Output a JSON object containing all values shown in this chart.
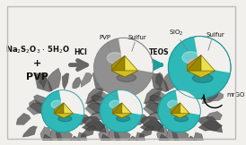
{
  "bg_color": "#f2f0ed",
  "border_color": "#bbbbbb",
  "pvp_sphere_color": "#909090",
  "silica_sphere_color": "#2eb8b8",
  "sulfur_mid": "#cfc020",
  "sulfur_dark": "#9a8800",
  "sulfur_light": "#ece050",
  "mrgo_color": "#4a4a4a",
  "pink_color": "#e8a8b8",
  "arrow1_color": "#666666",
  "arrow2_color": "#1a9e9e",
  "text_color": "#111111",
  "reagent1": "Na$_2$S$_2$O$_3$ $\\cdot$ 5H$_2$O",
  "reagent2": "+",
  "reagent3": "PVP",
  "label_hcl": "HCl",
  "label_teos": "TEOS",
  "label_mrgo": "mrGO",
  "label_pvp": "PVP",
  "label_sulfur": "Sulfur",
  "label_sio2": "SiO$_2$"
}
